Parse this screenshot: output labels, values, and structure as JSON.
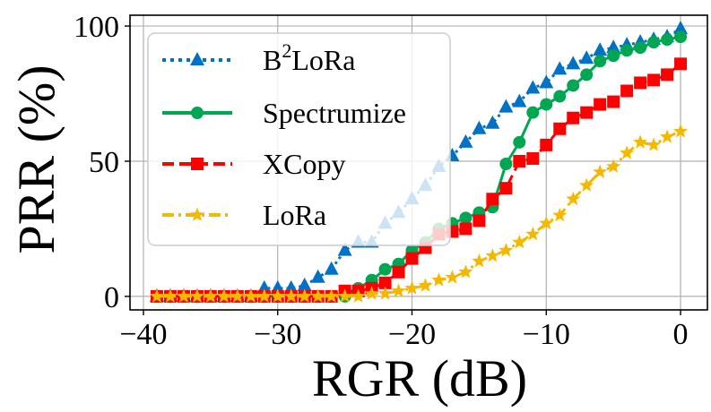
{
  "chart_data": {
    "type": "line",
    "xlabel": "RGR (dB)",
    "ylabel": "PRR (%)",
    "xlim": [
      -41,
      2
    ],
    "ylim": [
      -5,
      104
    ],
    "xticks": [
      -40,
      -30,
      -20,
      -10,
      0
    ],
    "xtick_labels": [
      "−40",
      "−30",
      "−20",
      "−10",
      "0"
    ],
    "yticks": [
      0,
      50,
      100
    ],
    "ytick_labels": [
      "0",
      "50",
      "100"
    ],
    "grid": true,
    "legend_position": "top-left",
    "series": [
      {
        "name": "B2LoRa",
        "name_base": "B",
        "name_sup": "2",
        "name_rest": "LoRa",
        "color": "#0072c6",
        "marker": "triangle",
        "linestyle": "dotted",
        "x": [
          -39,
          -38,
          -37,
          -36,
          -35,
          -34,
          -33,
          -32,
          -31,
          -30,
          -29,
          -28,
          -27,
          -26,
          -25,
          -24,
          -23,
          -22,
          -21,
          -20,
          -19,
          -18,
          -17,
          -16,
          -15,
          -14,
          -13,
          -12,
          -11,
          -10,
          -9,
          -8,
          -7,
          -6,
          -5,
          -4,
          -3,
          -2,
          -1,
          0
        ],
        "y": [
          0,
          0,
          0,
          0,
          0,
          0,
          0,
          0,
          3,
          3,
          3,
          4,
          7,
          10,
          17,
          20,
          20,
          27,
          31,
          36,
          41,
          48,
          52,
          57,
          62,
          64,
          70,
          72,
          77,
          79,
          84,
          86,
          88,
          91,
          92,
          93,
          94,
          95,
          96,
          99
        ]
      },
      {
        "name": "Spectrumize",
        "color": "#00a651",
        "marker": "circle",
        "linestyle": "solid",
        "x": [
          -39,
          -38,
          -37,
          -36,
          -35,
          -34,
          -33,
          -32,
          -31,
          -30,
          -29,
          -28,
          -27,
          -26,
          -25,
          -24,
          -23,
          -22,
          -21,
          -20,
          -19,
          -18,
          -17,
          -16,
          -15,
          -14,
          -13,
          -12,
          -11,
          -10,
          -9,
          -8,
          -7,
          -6,
          -5,
          -4,
          -3,
          -2,
          -1,
          0
        ],
        "y": [
          0,
          0,
          0,
          0,
          0,
          0,
          0,
          0,
          0,
          0,
          0,
          0,
          0,
          0,
          0,
          3,
          6,
          10,
          12,
          17,
          20,
          25,
          27,
          29,
          31,
          33,
          49,
          57,
          68,
          71,
          74,
          78,
          82,
          87,
          89,
          91,
          92,
          94,
          95,
          96
        ]
      },
      {
        "name": "XCopy",
        "color": "#ff0000",
        "marker": "square",
        "linestyle": "dashed",
        "x": [
          -39,
          -38,
          -37,
          -36,
          -35,
          -34,
          -33,
          -32,
          -31,
          -30,
          -29,
          -28,
          -27,
          -26,
          -25,
          -24,
          -23,
          -22,
          -21,
          -20,
          -19,
          -18,
          -17,
          -16,
          -15,
          -14,
          -13,
          -12,
          -11,
          -10,
          -9,
          -8,
          -7,
          -6,
          -5,
          -4,
          -3,
          -2,
          -1,
          0
        ],
        "y": [
          0,
          0,
          0,
          0,
          0,
          0,
          0,
          0,
          0,
          0,
          0,
          0,
          0,
          0,
          2,
          2,
          3,
          5,
          9,
          14,
          18,
          23,
          24,
          25,
          28,
          36,
          40,
          50,
          51,
          56,
          62,
          66,
          68,
          71,
          72,
          76,
          79,
          80,
          82,
          86
        ]
      },
      {
        "name": "LoRa",
        "color": "#f5b800",
        "marker": "star",
        "linestyle": "dashdot",
        "x": [
          -39,
          -38,
          -37,
          -36,
          -35,
          -34,
          -33,
          -32,
          -31,
          -30,
          -29,
          -28,
          -27,
          -26,
          -25,
          -24,
          -23,
          -22,
          -21,
          -20,
          -19,
          -18,
          -17,
          -16,
          -15,
          -14,
          -13,
          -12,
          -11,
          -10,
          -9,
          -8,
          -7,
          -6,
          -5,
          -4,
          -3,
          -2,
          -1,
          0
        ],
        "y": [
          0,
          0,
          0,
          0,
          0,
          0,
          0,
          0,
          0,
          0,
          0,
          0,
          0,
          0,
          0,
          0,
          1,
          1,
          2,
          3,
          4,
          6,
          7,
          9,
          13,
          15,
          17,
          20,
          23,
          27,
          30,
          36,
          41,
          46,
          48,
          53,
          57,
          56,
          59,
          61
        ]
      }
    ]
  }
}
